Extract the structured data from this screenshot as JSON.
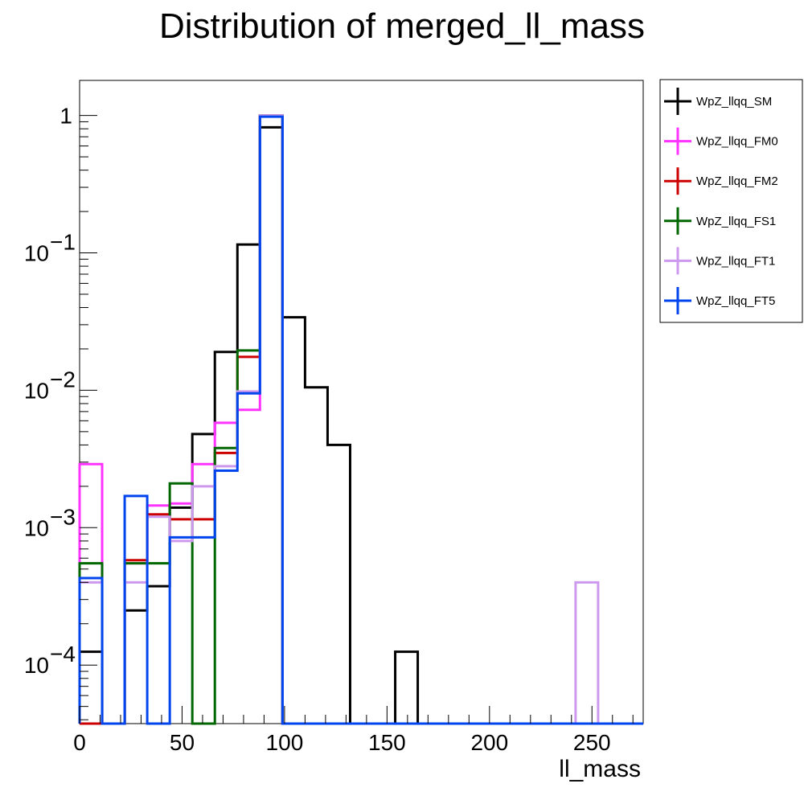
{
  "chart_data": {
    "type": "histogram",
    "title": "Distribution of merged_ll_mass",
    "xlabel": "ll_mass",
    "ylabel": "",
    "xlim": [
      0,
      275
    ],
    "ylim": [
      3.75e-05,
      1.8
    ],
    "yscale": "log",
    "grid": false,
    "legend_position": "outside-top-right",
    "bin_edges": [
      0,
      11,
      22,
      33,
      44,
      55,
      66,
      77,
      88,
      99,
      110,
      121,
      132,
      143,
      154,
      165,
      176,
      187,
      198,
      209,
      220,
      231,
      242,
      253,
      264,
      275
    ],
    "x_ticks": [
      0,
      50,
      100,
      150,
      200,
      250
    ],
    "x_tick_labels": [
      "0",
      "50",
      "100",
      "150",
      "200",
      "250"
    ],
    "y_ticks": [
      0.0001,
      0.001,
      0.01,
      0.1,
      1
    ],
    "y_tick_labels": [
      {
        "base": "10",
        "exp": "−4"
      },
      {
        "base": "10",
        "exp": "−3"
      },
      {
        "base": "10",
        "exp": "−2"
      },
      {
        "base": "10",
        "exp": "−1"
      },
      {
        "base": "1",
        "exp": ""
      }
    ],
    "series": [
      {
        "name": "WpZ_llqq_SM",
        "color": "#000000",
        "values": [
          0.000125,
          0,
          0.00025,
          0.000375,
          0.0014,
          0.0048,
          0.019,
          0.115,
          0.82,
          0.034,
          0.0105,
          0.004,
          0,
          0,
          0.000125,
          0,
          0,
          0,
          0,
          0,
          0,
          0,
          0,
          0,
          0
        ]
      },
      {
        "name": "WpZ_llqq_FM0",
        "color": "#ff33ff",
        "values": [
          0.0029,
          0,
          0.00055,
          0.00145,
          0.0015,
          0.0029,
          0.0058,
          0.0072,
          1.0,
          0,
          0,
          0,
          0,
          0,
          0,
          0,
          0,
          0,
          0,
          0,
          0,
          0,
          0,
          0,
          0
        ]
      },
      {
        "name": "WpZ_llqq_FM2",
        "color": "#cc0000",
        "values": [
          0,
          0,
          0.00058,
          0.00125,
          0.00115,
          0.00115,
          0.0035,
          0.0175,
          1.0,
          0,
          0,
          0,
          0,
          0,
          0,
          0,
          0,
          0,
          0,
          0,
          0,
          0,
          0,
          0,
          0
        ]
      },
      {
        "name": "WpZ_llqq_FS1",
        "color": "#006600",
        "values": [
          0.00055,
          0,
          0.00055,
          0.00055,
          0.0021,
          0,
          0.0038,
          0.0195,
          1.0,
          0,
          0,
          0,
          0,
          0,
          0,
          0,
          0,
          0,
          0,
          0,
          0,
          0,
          0,
          0,
          0
        ]
      },
      {
        "name": "WpZ_llqq_FT1",
        "color": "#cc99ee",
        "values": [
          0.0004,
          0,
          0.0004,
          0.0012,
          0.0008,
          0.002,
          0.0028,
          0.0098,
          1.0,
          0,
          0,
          0,
          0,
          0,
          0,
          0,
          0,
          0,
          0,
          0,
          0,
          0,
          0.0004,
          0,
          0
        ]
      },
      {
        "name": "WpZ_llqq_FT5",
        "color": "#0044ee",
        "values": [
          0.00043,
          0,
          0.0017,
          0,
          0.00085,
          0.00085,
          0.0026,
          0.0095,
          0.98,
          0,
          0,
          0,
          0,
          0,
          0,
          0,
          0,
          0,
          0,
          0,
          0,
          0,
          0,
          0,
          0
        ]
      }
    ]
  }
}
